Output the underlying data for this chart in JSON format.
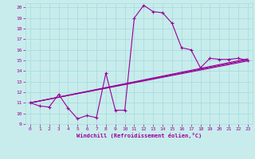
{
  "xlabel": "Windchill (Refroidissement éolien,°C)",
  "background_color": "#c8ecec",
  "grid_color": "#aadddd",
  "line_color": "#990099",
  "xlim": [
    -0.5,
    23.5
  ],
  "ylim": [
    9,
    20.4
  ],
  "xticks": [
    0,
    1,
    2,
    3,
    4,
    5,
    6,
    7,
    8,
    9,
    10,
    11,
    12,
    13,
    14,
    15,
    16,
    17,
    18,
    19,
    20,
    21,
    22,
    23
  ],
  "yticks": [
    9,
    10,
    11,
    12,
    13,
    14,
    15,
    16,
    17,
    18,
    19,
    20
  ],
  "line1_x": [
    0,
    1,
    2,
    3,
    4,
    5,
    6,
    7,
    8,
    9,
    10,
    11,
    12,
    13,
    14,
    15,
    16,
    17,
    18,
    19,
    20,
    21,
    22,
    23
  ],
  "line1_y": [
    11.0,
    10.7,
    10.6,
    11.8,
    10.5,
    9.5,
    9.8,
    9.6,
    13.8,
    10.3,
    10.3,
    19.0,
    20.2,
    19.6,
    19.5,
    18.5,
    16.2,
    16.0,
    14.3,
    15.2,
    15.1,
    15.1,
    15.2,
    15.0
  ],
  "line2_x": [
    0,
    23
  ],
  "line2_y": [
    11.0,
    14.95
  ],
  "line3_x": [
    0,
    23
  ],
  "line3_y": [
    11.0,
    15.05
  ],
  "line4_x": [
    0,
    23
  ],
  "line4_y": [
    11.0,
    15.15
  ]
}
